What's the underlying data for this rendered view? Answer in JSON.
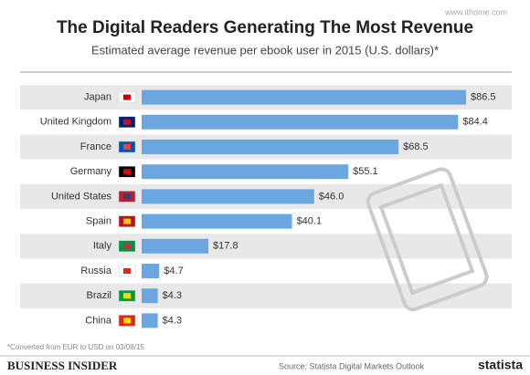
{
  "chart_data": {
    "type": "bar",
    "orientation": "horizontal",
    "title": "The Digital Readers Generating The Most Revenue",
    "subtitle": "Estimated average revenue per ebook user in 2015 (U.S. dollars)*",
    "categories": [
      "Japan",
      "United Kingdom",
      "France",
      "Germany",
      "United States",
      "Spain",
      "Italy",
      "Russia",
      "Brazil",
      "China"
    ],
    "values": [
      86.5,
      84.4,
      68.5,
      55.1,
      46.0,
      40.1,
      17.8,
      4.7,
      4.3,
      4.3
    ],
    "value_labels": [
      "$86.5",
      "$84.4",
      "$68.5",
      "$55.1",
      "$46.0",
      "$40.1",
      "$17.8",
      "$4.7",
      "$4.3",
      "$4.3"
    ],
    "color": "#6aa7e0",
    "footnote": "*Converted from EUR to USD on 03/08/15",
    "brand": "BUSINESS INSIDER",
    "source": "Source: Statista Digital Markets Outlook",
    "logo": "statista",
    "watermark": "www.ithome.com"
  }
}
